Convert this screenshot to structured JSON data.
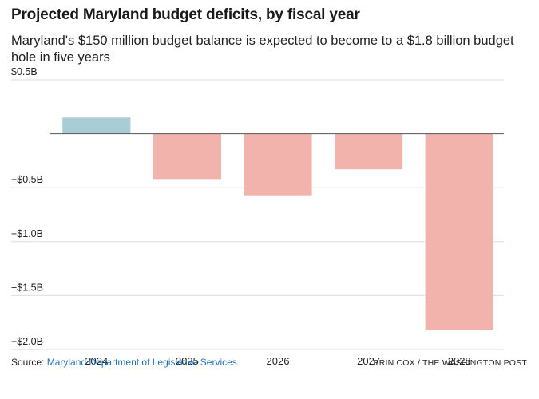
{
  "header": {
    "title": "Projected Maryland budget deficits, by fiscal year",
    "subtitle": "Maryland's $150 million budget balance is expected to become to a $1.8 billion budget hole in five years"
  },
  "chart_data": {
    "type": "bar",
    "categories": [
      "2024",
      "2025",
      "2026",
      "2027",
      "2028"
    ],
    "values": [
      0.15,
      -0.42,
      -0.57,
      -0.33,
      -1.82
    ],
    "value_unit": "billion dollars",
    "ylim": [
      -2.0,
      0.5
    ],
    "yticks": [
      {
        "value": 0.5,
        "label": "$0.5B"
      },
      {
        "value": -0.5,
        "label": "−$0.5B"
      },
      {
        "value": -1.0,
        "label": "−$1.0B"
      },
      {
        "value": -1.5,
        "label": "−$1.5B"
      },
      {
        "value": -2.0,
        "label": "−$2.0B"
      }
    ],
    "grid": true,
    "colors": {
      "positive": "#a9cdd6",
      "negative": "#f3b3ad",
      "zero_line": "#555555",
      "grid": "#dddddd"
    }
  },
  "footer": {
    "source_label": "Source: ",
    "source_name": "Maryland Department of Legislative Services",
    "credit": "ERIN COX / THE WASHINGTON POST"
  }
}
